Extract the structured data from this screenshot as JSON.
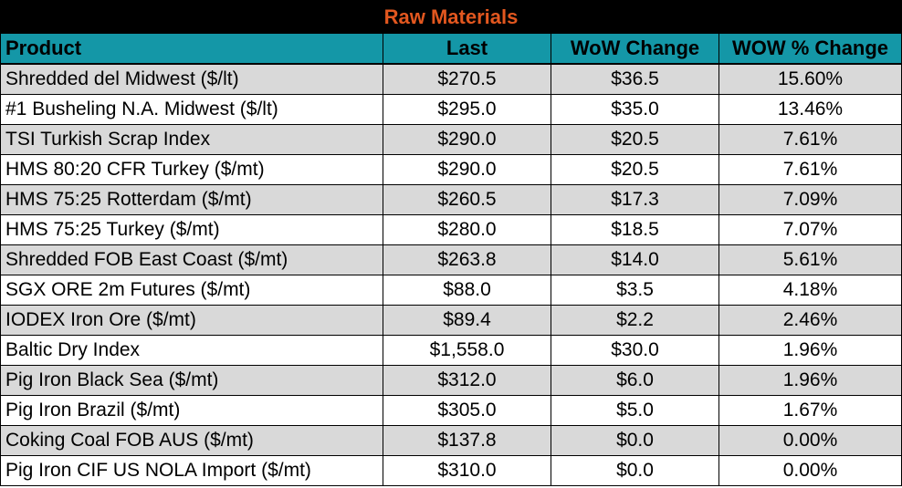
{
  "title": "Raw Materials",
  "columns": [
    "Product",
    "Last",
    "WoW Change",
    "WOW % Change"
  ],
  "rows": [
    [
      "Shredded del  Midwest ($/lt)",
      "$270.5",
      "$36.5",
      "15.60%"
    ],
    [
      "#1 Busheling N.A. Midwest ($/lt)",
      "$295.0",
      "$35.0",
      "13.46%"
    ],
    [
      "TSI Turkish Scrap Index",
      "$290.0",
      "$20.5",
      "7.61%"
    ],
    [
      "HMS 80:20 CFR Turkey ($/mt)",
      "$290.0",
      "$20.5",
      "7.61%"
    ],
    [
      "HMS 75:25 Rotterdam ($/mt)",
      "$260.5",
      "$17.3",
      "7.09%"
    ],
    [
      "HMS 75:25 Turkey ($/mt)",
      "$280.0",
      "$18.5",
      "7.07%"
    ],
    [
      "Shredded FOB East Coast ($/mt)",
      "$263.8",
      "$14.0",
      "5.61%"
    ],
    [
      "SGX ORE 2m Futures ($/mt)",
      "$88.0",
      "$3.5",
      "4.18%"
    ],
    [
      "IODEX  Iron Ore ($/mt)",
      "$89.4",
      "$2.2",
      "2.46%"
    ],
    [
      "Baltic Dry Index",
      "$1,558.0",
      "$30.0",
      "1.96%"
    ],
    [
      "Pig Iron Black Sea ($/mt)",
      "$312.0",
      "$6.0",
      "1.96%"
    ],
    [
      "Pig Iron Brazil ($/mt)",
      "$305.0",
      "$5.0",
      "1.67%"
    ],
    [
      "Coking Coal FOB AUS ($/mt)",
      "$137.8",
      "$0.0",
      "0.00%"
    ],
    [
      "Pig Iron CIF US NOLA Import ($/mt)",
      "$310.0",
      "$0.0",
      "0.00%"
    ]
  ],
  "colors": {
    "title_bg": "#000000",
    "title_text": "#e2571f",
    "header_bg": "#1497a7",
    "row_alt_bg": "#d9d9d9",
    "row_bg": "#ffffff"
  }
}
